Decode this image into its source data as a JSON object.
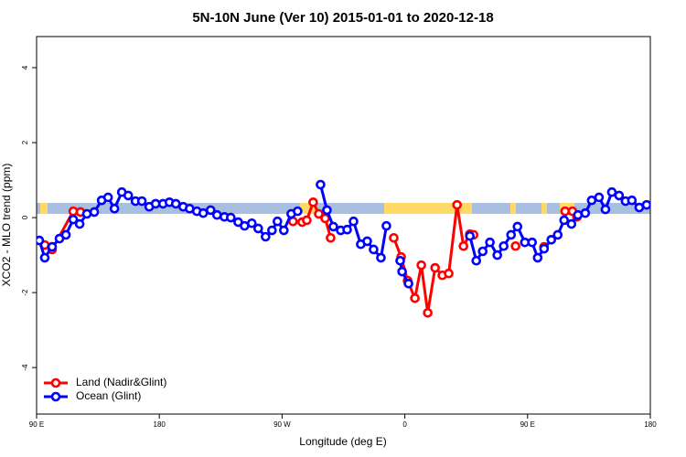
{
  "chart_data": {
    "type": "line",
    "title": "5N-10N June (Ver 10)   2015-01-01 to 2020-12-18",
    "x_label": "Longitude (deg E)",
    "y_label": "XCO2 - MLO trend (ppm)",
    "xlim": [
      90,
      540
    ],
    "ylim": [
      -5.24,
      4.83
    ],
    "xticks": [
      {
        "value": 90,
        "label": "90 E"
      },
      180,
      {
        "value": 270,
        "label": "90 W"
      },
      {
        "value": 360,
        "label": "0"
      },
      {
        "value": 450,
        "label": "90 E"
      },
      {
        "value": 540,
        "label": "180"
      }
    ],
    "yticks": [
      -4,
      -2,
      0,
      2,
      4
    ],
    "legend": "bottom-left",
    "series": [
      {
        "name": "Land (Nadir&Glint)",
        "color": "#ff0000",
        "x": [
          96.0,
          101.4,
          116.9,
          122.2,
          null,
          278.0,
          284.7,
          288.1,
          292.8,
          296.9,
          301.6,
          305.6,
          null,
          351.9,
          357.3,
          362.0,
          367.4,
          372.1,
          376.8,
          382.2,
          387.5,
          392.2,
          398.3,
          403.0,
          407.7,
          410.4,
          null,
          441.2,
          null,
          462.1,
          null,
          477.5,
          482.9,
          486.2
        ],
        "values": [
          -0.73,
          -0.85,
          0.17,
          0.15,
          null,
          -0.1,
          -0.12,
          -0.07,
          0.41,
          0.1,
          -0.02,
          -0.54,
          null,
          -0.54,
          -1.05,
          -1.68,
          -2.15,
          -1.27,
          -2.54,
          -1.34,
          -1.54,
          -1.49,
          0.34,
          -0.76,
          -0.44,
          -0.46,
          null,
          -0.76,
          null,
          -0.78,
          null,
          0.17,
          0.17,
          0.02
        ]
      },
      {
        "name": "Ocean (Glint)",
        "color": "#0000ff",
        "x": [
          92.0,
          96.0,
          101.4,
          106.8,
          111.5,
          116.9,
          121.6,
          126.9,
          132.3,
          137.7,
          142.4,
          147.1,
          152.5,
          157.2,
          162.5,
          167.2,
          172.6,
          177.3,
          182.7,
          187.4,
          192.1,
          197.5,
          202.2,
          207.5,
          212.2,
          217.6,
          222.3,
          227.7,
          232.4,
          237.8,
          242.5,
          247.8,
          252.5,
          257.9,
          262.6,
          266.6,
          271.3,
          276.7,
          281.4,
          null,
          298.2,
          302.9,
          307.6,
          313.0,
          317.7,
          322.4,
          327.7,
          332.4,
          337.1,
          342.5,
          346.5,
          null,
          356.6,
          358.0,
          362.7,
          null,
          407.7,
          412.4,
          417.1,
          422.4,
          427.8,
          432.5,
          437.9,
          442.6,
          448.0,
          453.3,
          457.4,
          462.1,
          467.4,
          472.1,
          476.8,
          482.2,
          486.9,
          492.3,
          497.0,
          502.4,
          507.1,
          511.8,
          517.1,
          521.8,
          526.5,
          531.9,
          537.3
        ],
        "values": [
          -0.61,
          -1.07,
          -0.78,
          -0.56,
          -0.46,
          -0.05,
          -0.17,
          0.1,
          0.15,
          0.46,
          0.54,
          0.24,
          0.68,
          0.59,
          0.44,
          0.44,
          0.29,
          0.37,
          0.37,
          0.41,
          0.37,
          0.29,
          0.24,
          0.17,
          0.12,
          0.2,
          0.07,
          0.02,
          0.0,
          -0.12,
          -0.22,
          -0.15,
          -0.29,
          -0.51,
          -0.34,
          -0.1,
          -0.34,
          0.1,
          0.17,
          null,
          0.88,
          0.2,
          -0.24,
          -0.34,
          -0.32,
          -0.1,
          -0.71,
          -0.63,
          -0.85,
          -1.07,
          -0.22,
          null,
          -1.15,
          -1.44,
          -1.76,
          null,
          -0.49,
          -1.15,
          -0.9,
          -0.66,
          -1.0,
          -0.76,
          -0.46,
          -0.24,
          -0.66,
          -0.66,
          -1.07,
          -0.83,
          -0.59,
          -0.46,
          -0.07,
          -0.17,
          0.07,
          0.12,
          0.46,
          0.54,
          0.22,
          0.68,
          0.59,
          0.44,
          0.46,
          0.27,
          0.34
        ]
      }
    ]
  }
}
